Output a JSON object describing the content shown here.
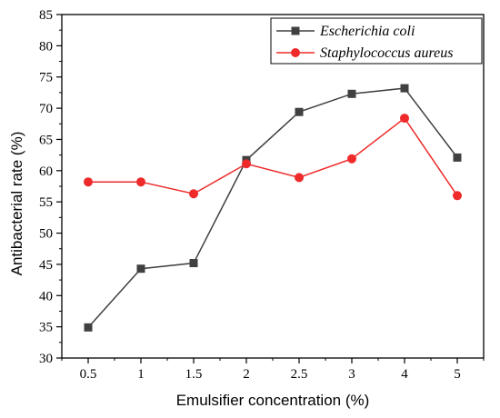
{
  "chart_data": {
    "type": "line",
    "title": "",
    "xlabel": "Emulsifier concentration (%)",
    "ylabel": "Antibacterial rate (%)",
    "categories": [
      "0.5",
      "1",
      "1.5",
      "2",
      "2.5",
      "3",
      "4",
      "5"
    ],
    "ylim": [
      30,
      85
    ],
    "yticks": [
      30,
      35,
      40,
      45,
      50,
      55,
      60,
      65,
      70,
      75,
      80,
      85
    ],
    "grid": false,
    "legend_position": "top-right",
    "series": [
      {
        "name": "Escherichia coli",
        "marker": "square",
        "color": "#404040",
        "values": [
          34.9,
          44.3,
          45.2,
          61.7,
          69.4,
          72.3,
          73.2,
          62.1
        ]
      },
      {
        "name": "Staphylococcus aureus",
        "marker": "circle",
        "color": "#ee2a2a",
        "values": [
          58.2,
          58.2,
          56.3,
          61.1,
          58.9,
          61.9,
          68.4,
          56.0
        ]
      }
    ]
  }
}
